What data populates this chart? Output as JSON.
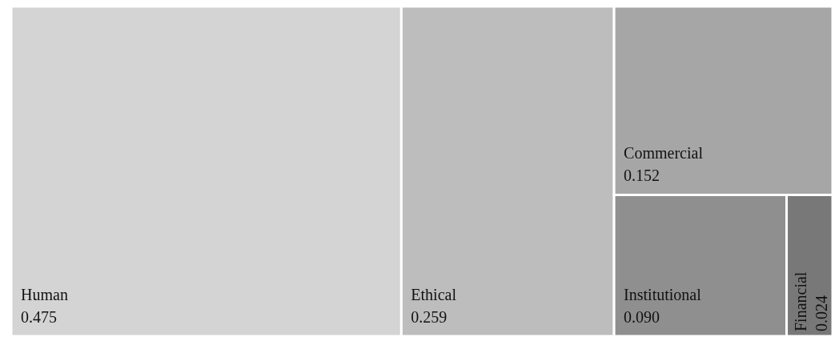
{
  "chart_data": {
    "type": "other",
    "categories": [
      "Human",
      "Ethical",
      "Commercial",
      "Institutional",
      "Financial"
    ],
    "values": [
      0.475,
      0.259,
      0.152,
      0.09,
      0.024
    ],
    "value_labels": [
      "0.475",
      "0.259",
      "0.152",
      "0.090",
      "0.024"
    ],
    "colors": [
      "#d4d4d4",
      "#bdbdbd",
      "#a6a6a6",
      "#8f8f8f",
      "#787878"
    ]
  }
}
